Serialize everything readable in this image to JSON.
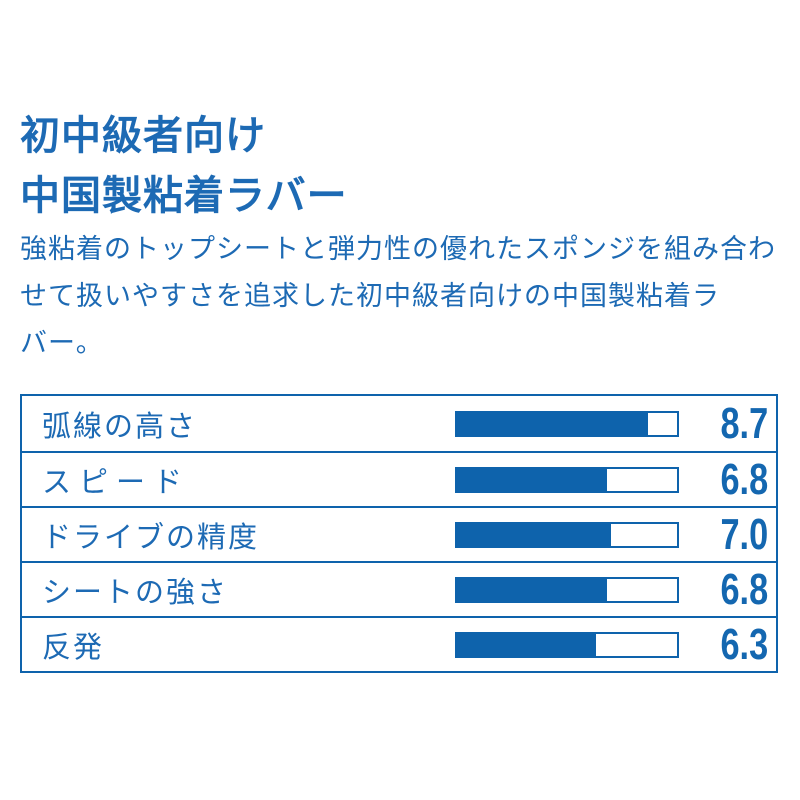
{
  "colors": {
    "text_blue": "#1d6ab4",
    "bar_blue": "#0e63ac",
    "border_blue": "#0e63ac",
    "value_blue": "#1467b0",
    "background": "#ffffff"
  },
  "header": {
    "title_line1": "初中級者向け",
    "title_line2": "中国製粘着ラバー"
  },
  "description": {
    "lines": [
      "強粘着のトップシートと弾力性の優れたスポンジを組み合わ",
      "せて扱いやすさを追求した初中級者向けの中国製粘着ラ",
      "バー。"
    ]
  },
  "chart_data": {
    "type": "bar",
    "orientation": "horizontal",
    "categories": [
      "弧線の高さ",
      "スピード",
      "ドライブの精度",
      "シートの強さ",
      "反発"
    ],
    "values": [
      8.7,
      6.8,
      7.0,
      6.8,
      6.3
    ],
    "value_labels": [
      "8.7",
      "6.8",
      "7.0",
      "6.8",
      "6.3"
    ],
    "max": 10,
    "title": "",
    "xlabel": "",
    "ylabel": "",
    "grid": false,
    "legend": false
  }
}
